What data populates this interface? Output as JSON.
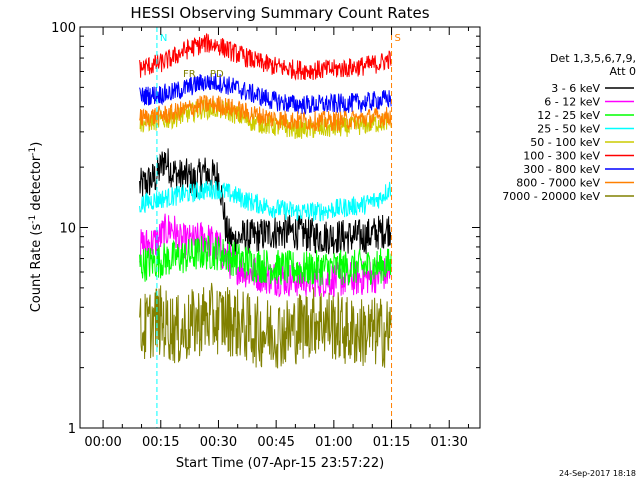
{
  "chart_data": {
    "type": "line",
    "title": "HESSI Observing Summary Count Rates",
    "xlabel": "Start Time (07-Apr-15 23:57:22)",
    "ylabel_main": "Count Rate (s",
    "ylabel_sup1": "-1",
    "ylabel_mid": " detector",
    "ylabel_sup2": "-1",
    "ylabel_end": ")",
    "y_scale": "log",
    "ylim": [
      1,
      100
    ],
    "xlim_minutes": [
      -6,
      98
    ],
    "y_ticks": [
      {
        "value": 1,
        "label": "1"
      },
      {
        "value": 10,
        "label": "10"
      },
      {
        "value": 100,
        "label": "100"
      }
    ],
    "x_ticks": [
      {
        "minutes": 0,
        "label": "00:00"
      },
      {
        "minutes": 15,
        "label": "00:15"
      },
      {
        "minutes": 30,
        "label": "00:30"
      },
      {
        "minutes": 45,
        "label": "00:45"
      },
      {
        "minutes": 60,
        "label": "01:00"
      },
      {
        "minutes": 75,
        "label": "01:15"
      },
      {
        "minutes": 90,
        "label": "01:30"
      }
    ],
    "legend_placement": "right",
    "legend_header": [
      "Det 1,3,5,6,7,9,",
      "Att 0"
    ],
    "series": [
      {
        "name": "3 - 6 keV",
        "color": "#000000",
        "t": [
          9.5,
          12,
          14,
          16,
          18,
          20,
          22,
          24,
          26,
          28,
          30,
          32,
          34,
          36,
          40,
          44,
          50,
          56,
          62,
          68,
          72,
          75
        ],
        "values": [
          16,
          17,
          18,
          22,
          19,
          18,
          18,
          17,
          19,
          18,
          18,
          9.5,
          8.5,
          9,
          9,
          9.5,
          9.5,
          9,
          9,
          9,
          9.5,
          10
        ]
      },
      {
        "name": "6 - 12 keV",
        "color": "#ff00ff",
        "t": [
          9.5,
          14,
          16,
          18,
          20,
          22,
          24,
          26,
          28,
          30,
          32,
          34,
          38,
          44,
          50,
          56,
          62,
          68,
          75
        ],
        "values": [
          8,
          8.5,
          9.5,
          10,
          8.5,
          8.5,
          8.5,
          9,
          8.5,
          8,
          7,
          6.5,
          6,
          5.6,
          5.5,
          5.5,
          5.5,
          5.6,
          6
        ]
      },
      {
        "name": "12 - 25 keV",
        "color": "#00ff00",
        "t": [
          9.5,
          14,
          18,
          22,
          26,
          30,
          34,
          40,
          46,
          52,
          58,
          64,
          70,
          75
        ],
        "values": [
          6.5,
          6.8,
          7,
          7.2,
          7.5,
          7.5,
          7,
          6.5,
          6.3,
          6.2,
          6.3,
          6.3,
          6.4,
          6.5
        ]
      },
      {
        "name": "25 - 50 keV",
        "color": "#00ffff",
        "t": [
          9.5,
          12,
          16,
          20,
          24,
          28,
          30,
          34,
          38,
          44,
          50,
          56,
          62,
          68,
          72,
          75
        ],
        "values": [
          13,
          13.5,
          14,
          14.5,
          15,
          15.5,
          15.5,
          14.5,
          13.5,
          12.5,
          12,
          12,
          12.5,
          13,
          14,
          16
        ]
      },
      {
        "name": "50 - 100 keV",
        "color": "#cccc00",
        "t": [
          9.5,
          14,
          18,
          22,
          26,
          30,
          34,
          38,
          44,
          50,
          56,
          62,
          68,
          75
        ],
        "values": [
          33,
          34,
          35,
          37,
          39,
          39,
          37,
          34,
          32,
          31,
          31,
          31.5,
          32.5,
          34
        ]
      },
      {
        "name": "100 - 300 keV",
        "color": "#ff0000",
        "t": [
          9.5,
          12,
          15,
          18,
          21,
          24,
          27,
          30,
          33,
          36,
          40,
          44,
          48,
          52,
          56,
          60,
          64,
          68,
          72,
          75
        ],
        "values": [
          62,
          64,
          66,
          70,
          76,
          80,
          83,
          81,
          76,
          72,
          67,
          64,
          62,
          61,
          61,
          61.5,
          62.5,
          64,
          66,
          70
        ]
      },
      {
        "name": "300 - 800 keV",
        "color": "#0000ff",
        "t": [
          9.5,
          14,
          18,
          22,
          26,
          30,
          34,
          38,
          44,
          50,
          56,
          62,
          68,
          75
        ],
        "values": [
          45,
          46,
          47,
          50,
          53,
          53,
          50,
          47,
          43,
          41,
          41,
          41.5,
          42,
          44
        ]
      },
      {
        "name": "800 - 7000 keV",
        "color": "#ff8000",
        "t": [
          9.5,
          14,
          18,
          22,
          26,
          30,
          34,
          38,
          44,
          50,
          56,
          62,
          68,
          75
        ],
        "values": [
          35,
          36,
          37,
          39,
          41,
          41,
          39,
          37,
          35,
          34,
          34,
          34,
          35,
          36
        ]
      },
      {
        "name": "7000 - 20000 keV",
        "color": "#808000",
        "t": [
          9.5,
          14,
          20,
          26,
          32,
          40,
          48,
          56,
          64,
          72,
          75
        ],
        "values": [
          3,
          3.5,
          3,
          3.5,
          3.5,
          3,
          3,
          3.5,
          3,
          3,
          3
        ]
      }
    ],
    "flags": [
      {
        "label": "N",
        "minutes": 14,
        "color": "#00ffff"
      },
      {
        "label": "S",
        "minutes": 75,
        "color": "#ff8000"
      },
      {
        "label": "FR",
        "minutes": 20,
        "color": "#808000"
      },
      {
        "label": "PD",
        "minutes": 27,
        "color": "#808000"
      }
    ],
    "timestamp": "24-Sep-2017 18:18"
  }
}
